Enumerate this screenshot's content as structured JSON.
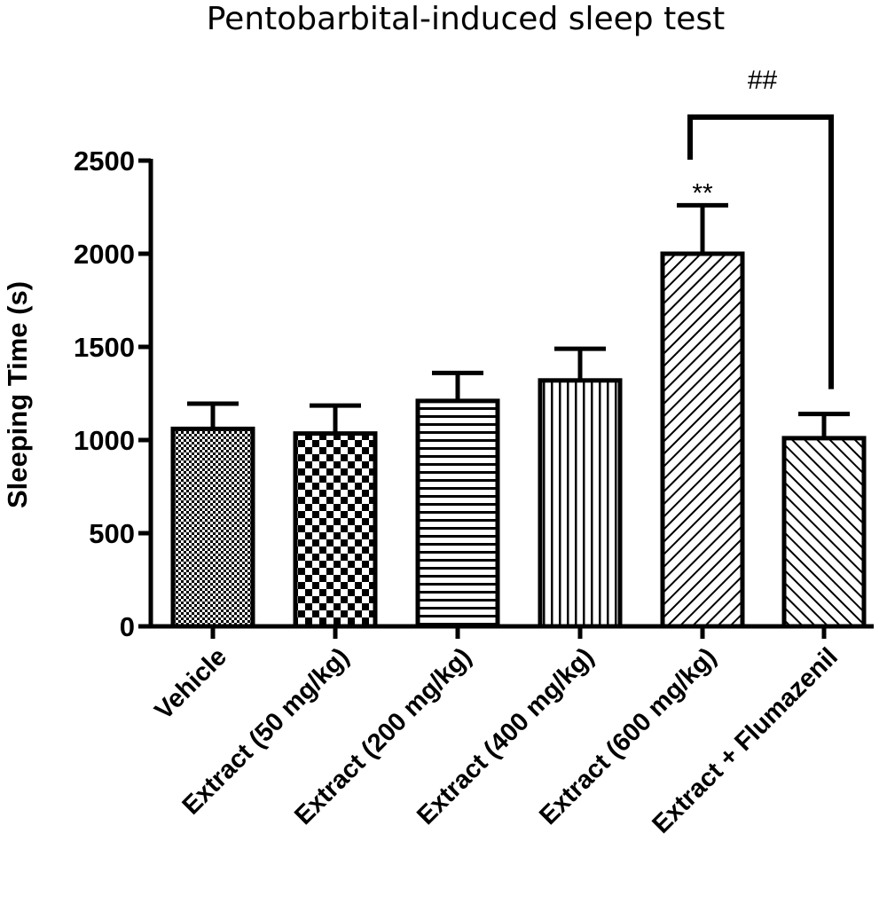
{
  "chart_data": {
    "type": "bar",
    "title": "Pentobarbital-induced sleep test",
    "xlabel": "",
    "ylabel": "Sleeping Time (s)",
    "ylim": [
      0,
      2500
    ],
    "yticks": [
      0,
      500,
      1000,
      1500,
      2000,
      2500
    ],
    "grid": false,
    "categories": [
      "Vehicle",
      "Extract (50 mg/kg)",
      "Extract (200 mg/kg)",
      "Extract (400 mg/kg)",
      "Extract (600 mg/kg)",
      "Extract + Flumazenil"
    ],
    "values": [
      1060,
      1035,
      1210,
      1320,
      2000,
      1010
    ],
    "errors": [
      135,
      150,
      150,
      170,
      260,
      130
    ],
    "patterns": [
      "fine-dots",
      "checkerboard",
      "horizontal-lines",
      "vertical-lines",
      "diagonal-up",
      "diagonal-down"
    ],
    "annotations": [
      {
        "text": "**",
        "category": "Extract (600 mg/kg)"
      },
      {
        "text": "##",
        "from": "Extract (600 mg/kg)",
        "to": "Extract + Flumazenil"
      }
    ],
    "colors": {
      "ink": "#000000",
      "fill": "#ffffff"
    }
  }
}
